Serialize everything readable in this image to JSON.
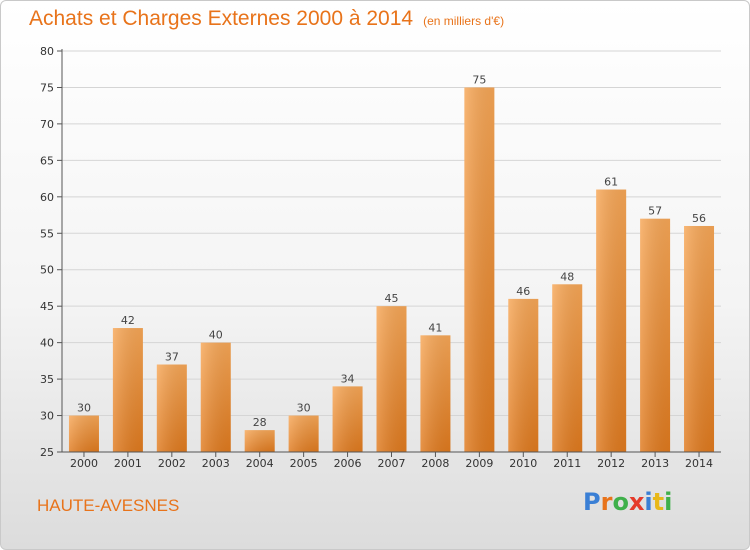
{
  "header": {
    "title": "Achats et Charges Externes 2000 à 2014",
    "subtitle": "(en milliers d'€)"
  },
  "place_name": "HAUTE-AVESNES",
  "logo": {
    "text": "Proxiti",
    "letter_colors": [
      "#3a7fd5",
      "#e8731a",
      "#3fb04a",
      "#e53a2a",
      "#3a7fd5",
      "#e8b81a",
      "#3fb04a"
    ]
  },
  "colors": {
    "bar_top": "#f7a757",
    "bar_bottom": "#e07a1e",
    "accent": "#e8731a",
    "grid": "#d5d5d5"
  },
  "chart_data": {
    "type": "bar",
    "categories": [
      "2000",
      "2001",
      "2002",
      "2003",
      "2004",
      "2005",
      "2006",
      "2007",
      "2008",
      "2009",
      "2010",
      "2011",
      "2012",
      "2013",
      "2014"
    ],
    "values": [
      30,
      42,
      37,
      40,
      28,
      30,
      34,
      45,
      41,
      75,
      46,
      48,
      61,
      57,
      56
    ],
    "title": "Achats et Charges Externes 2000 à 2014",
    "subtitle": "(en milliers d'€)",
    "xlabel": "",
    "ylabel": "",
    "ylim": [
      25,
      80
    ],
    "yticks": [
      25,
      30,
      35,
      40,
      45,
      50,
      55,
      60,
      65,
      70,
      75,
      80
    ],
    "grid": true,
    "data_labels": true
  }
}
